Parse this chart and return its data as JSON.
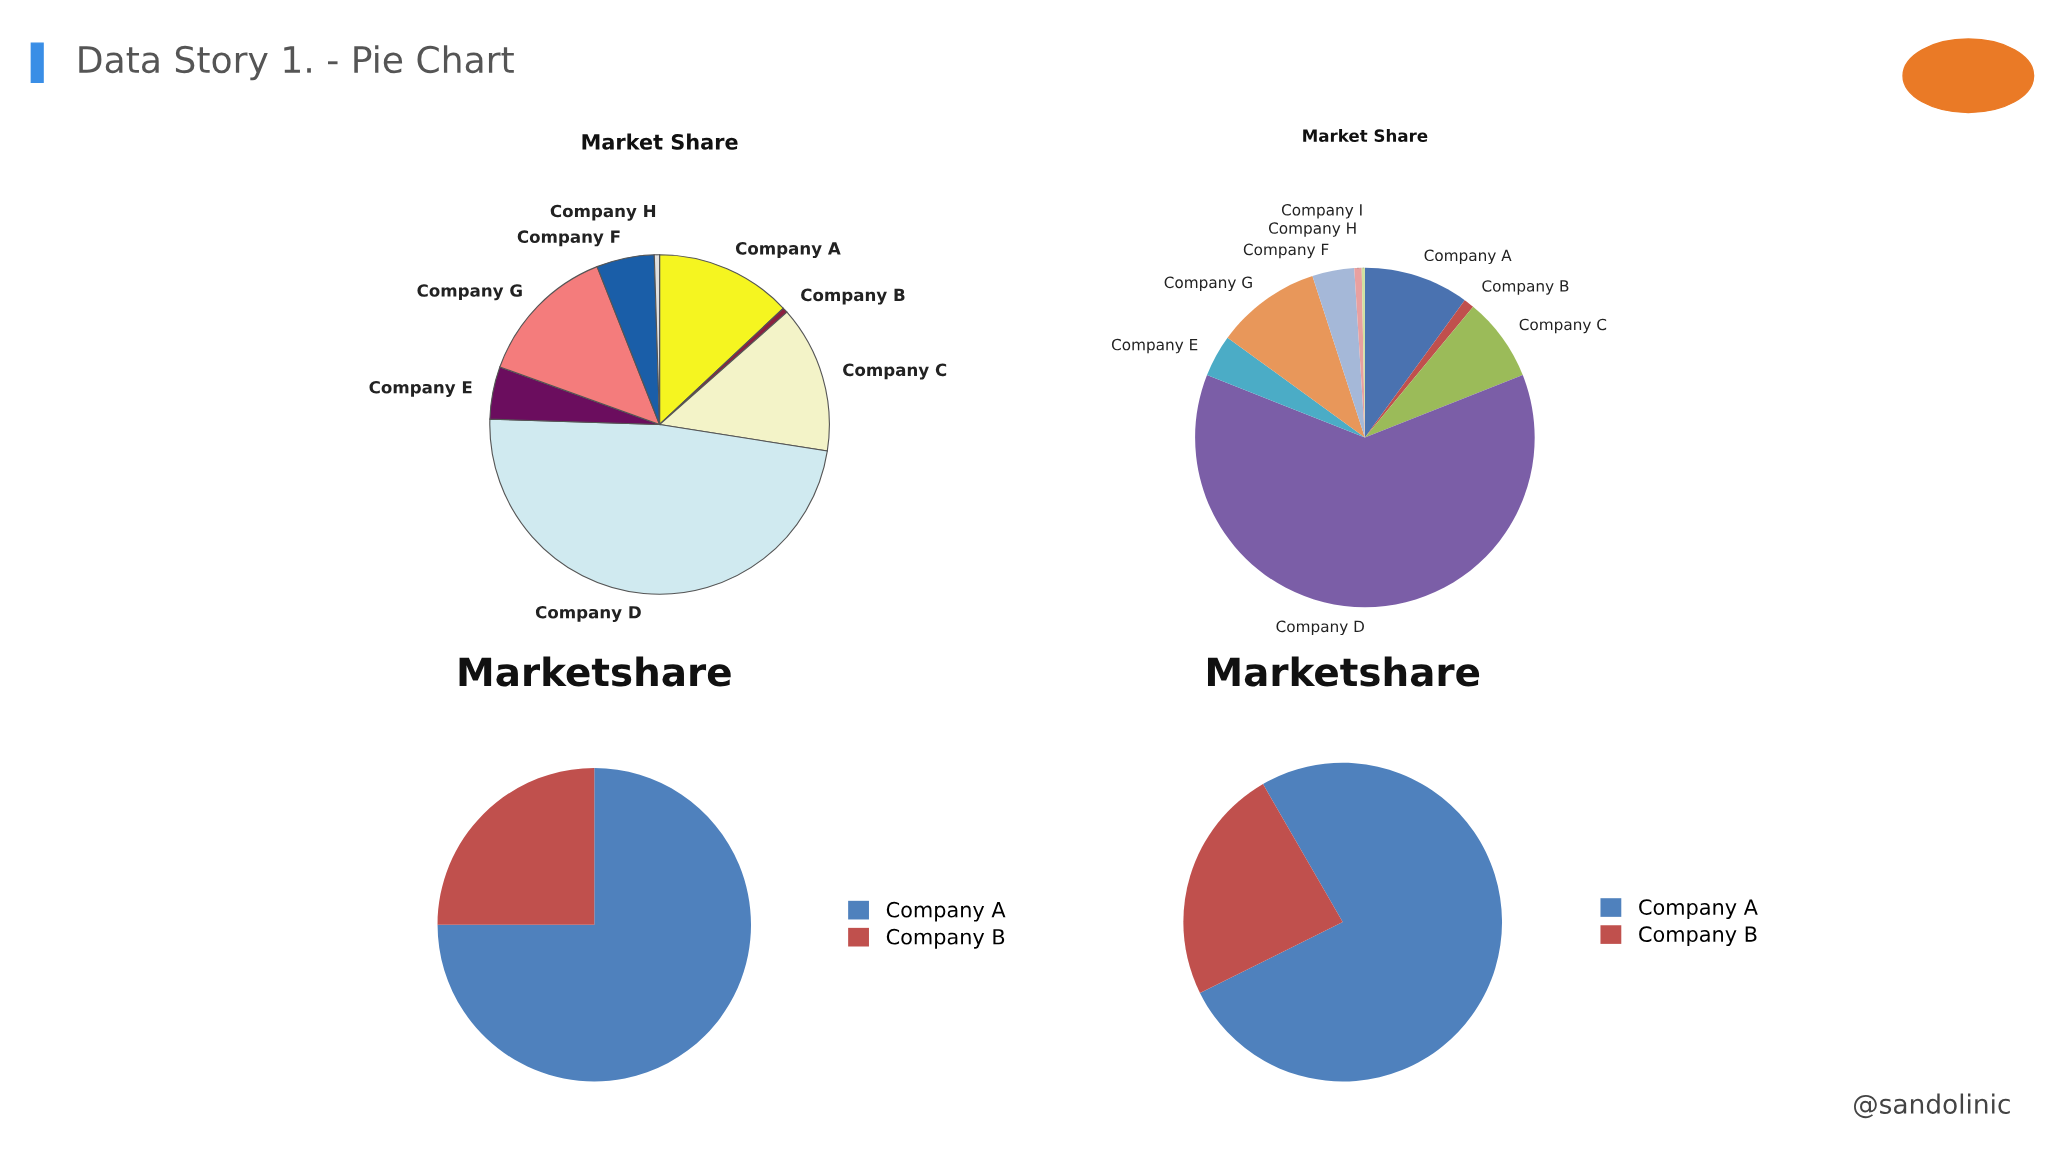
{
  "chart_data": [
    {
      "type": "pie",
      "title": "Market Share",
      "annotations": [
        "Data Story 1. - Pie Chart"
      ],
      "categories": [
        "Company A",
        "Company B",
        "Company C",
        "Company D",
        "Company E",
        "Company G",
        "Company F",
        "Company H"
      ],
      "values": [
        13,
        0.5,
        14,
        48,
        5,
        13.5,
        5.5,
        0.5
      ],
      "colors": [
        "#f5f520",
        "#8b2040",
        "#f3f3c8",
        "#d0eaf0",
        "#6b0d5e",
        "#f47c7c",
        "#1a5ea8",
        "#e0e0e0"
      ]
    },
    {
      "type": "pie",
      "title": "Market Share",
      "categories": [
        "Company A",
        "Company B",
        "Company C",
        "Company D",
        "Company E",
        "Company G",
        "Company F",
        "Company H",
        "Company I"
      ],
      "values": [
        10,
        1,
        8,
        62,
        4,
        10,
        4,
        0.7,
        0.3
      ],
      "colors": [
        "#4a72b0",
        "#c0504d",
        "#9bbb59",
        "#7b5ea7",
        "#4bacc6",
        "#e8975a",
        "#a5b8d8",
        "#e8a0a0",
        "#d0e0a0"
      ]
    },
    {
      "type": "pie",
      "title": "Marketshare",
      "legend": "right",
      "categories": [
        "Company A",
        "Company B"
      ],
      "values": [
        75,
        25
      ],
      "colors": [
        "#4f81bd",
        "#c0504d"
      ]
    },
    {
      "type": "pie",
      "title": "Marketshare",
      "legend": "right",
      "annotations": [
        "@sandolinic"
      ],
      "categories": [
        "Company A",
        "Company B"
      ],
      "values": [
        76,
        24
      ],
      "colors": [
        "#4f81bd",
        "#c0504d"
      ]
    }
  ]
}
